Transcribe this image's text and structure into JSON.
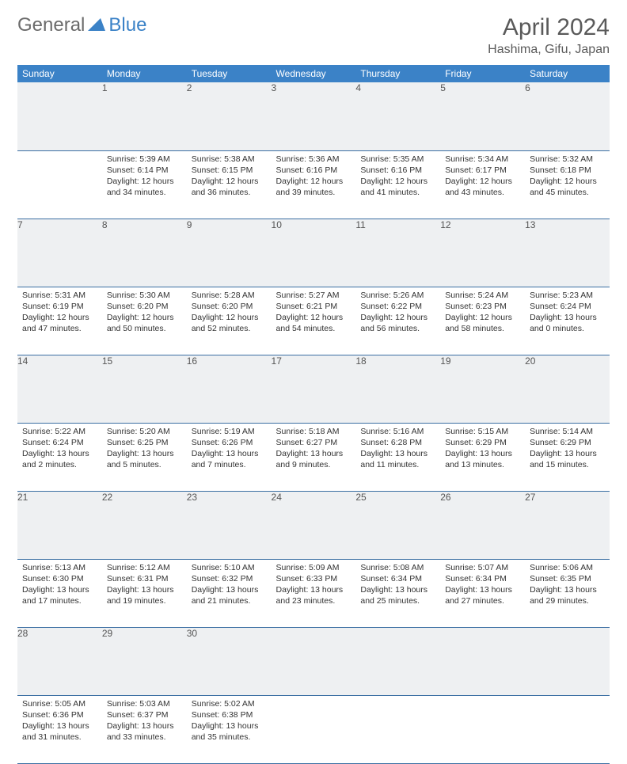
{
  "brand": {
    "part1": "General",
    "part2": "Blue"
  },
  "title": "April 2024",
  "location": "Hashima, Gifu, Japan",
  "colors": {
    "accent": "#3b82c7",
    "headerText": "#ffffff",
    "dayBg": "#eef0f2",
    "rule": "#3b6fa3",
    "bodyText": "#333333"
  },
  "dayNames": [
    "Sunday",
    "Monday",
    "Tuesday",
    "Wednesday",
    "Thursday",
    "Friday",
    "Saturday"
  ],
  "weeks": [
    [
      null,
      {
        "n": "1",
        "sr": "5:39 AM",
        "ss": "6:14 PM",
        "dl": "12 hours and 34 minutes."
      },
      {
        "n": "2",
        "sr": "5:38 AM",
        "ss": "6:15 PM",
        "dl": "12 hours and 36 minutes."
      },
      {
        "n": "3",
        "sr": "5:36 AM",
        "ss": "6:16 PM",
        "dl": "12 hours and 39 minutes."
      },
      {
        "n": "4",
        "sr": "5:35 AM",
        "ss": "6:16 PM",
        "dl": "12 hours and 41 minutes."
      },
      {
        "n": "5",
        "sr": "5:34 AM",
        "ss": "6:17 PM",
        "dl": "12 hours and 43 minutes."
      },
      {
        "n": "6",
        "sr": "5:32 AM",
        "ss": "6:18 PM",
        "dl": "12 hours and 45 minutes."
      }
    ],
    [
      {
        "n": "7",
        "sr": "5:31 AM",
        "ss": "6:19 PM",
        "dl": "12 hours and 47 minutes."
      },
      {
        "n": "8",
        "sr": "5:30 AM",
        "ss": "6:20 PM",
        "dl": "12 hours and 50 minutes."
      },
      {
        "n": "9",
        "sr": "5:28 AM",
        "ss": "6:20 PM",
        "dl": "12 hours and 52 minutes."
      },
      {
        "n": "10",
        "sr": "5:27 AM",
        "ss": "6:21 PM",
        "dl": "12 hours and 54 minutes."
      },
      {
        "n": "11",
        "sr": "5:26 AM",
        "ss": "6:22 PM",
        "dl": "12 hours and 56 minutes."
      },
      {
        "n": "12",
        "sr": "5:24 AM",
        "ss": "6:23 PM",
        "dl": "12 hours and 58 minutes."
      },
      {
        "n": "13",
        "sr": "5:23 AM",
        "ss": "6:24 PM",
        "dl": "13 hours and 0 minutes."
      }
    ],
    [
      {
        "n": "14",
        "sr": "5:22 AM",
        "ss": "6:24 PM",
        "dl": "13 hours and 2 minutes."
      },
      {
        "n": "15",
        "sr": "5:20 AM",
        "ss": "6:25 PM",
        "dl": "13 hours and 5 minutes."
      },
      {
        "n": "16",
        "sr": "5:19 AM",
        "ss": "6:26 PM",
        "dl": "13 hours and 7 minutes."
      },
      {
        "n": "17",
        "sr": "5:18 AM",
        "ss": "6:27 PM",
        "dl": "13 hours and 9 minutes."
      },
      {
        "n": "18",
        "sr": "5:16 AM",
        "ss": "6:28 PM",
        "dl": "13 hours and 11 minutes."
      },
      {
        "n": "19",
        "sr": "5:15 AM",
        "ss": "6:29 PM",
        "dl": "13 hours and 13 minutes."
      },
      {
        "n": "20",
        "sr": "5:14 AM",
        "ss": "6:29 PM",
        "dl": "13 hours and 15 minutes."
      }
    ],
    [
      {
        "n": "21",
        "sr": "5:13 AM",
        "ss": "6:30 PM",
        "dl": "13 hours and 17 minutes."
      },
      {
        "n": "22",
        "sr": "5:12 AM",
        "ss": "6:31 PM",
        "dl": "13 hours and 19 minutes."
      },
      {
        "n": "23",
        "sr": "5:10 AM",
        "ss": "6:32 PM",
        "dl": "13 hours and 21 minutes."
      },
      {
        "n": "24",
        "sr": "5:09 AM",
        "ss": "6:33 PM",
        "dl": "13 hours and 23 minutes."
      },
      {
        "n": "25",
        "sr": "5:08 AM",
        "ss": "6:34 PM",
        "dl": "13 hours and 25 minutes."
      },
      {
        "n": "26",
        "sr": "5:07 AM",
        "ss": "6:34 PM",
        "dl": "13 hours and 27 minutes."
      },
      {
        "n": "27",
        "sr": "5:06 AM",
        "ss": "6:35 PM",
        "dl": "13 hours and 29 minutes."
      }
    ],
    [
      {
        "n": "28",
        "sr": "5:05 AM",
        "ss": "6:36 PM",
        "dl": "13 hours and 31 minutes."
      },
      {
        "n": "29",
        "sr": "5:03 AM",
        "ss": "6:37 PM",
        "dl": "13 hours and 33 minutes."
      },
      {
        "n": "30",
        "sr": "5:02 AM",
        "ss": "6:38 PM",
        "dl": "13 hours and 35 minutes."
      },
      null,
      null,
      null,
      null
    ]
  ],
  "labels": {
    "sunrise": "Sunrise:",
    "sunset": "Sunset:",
    "daylight": "Daylight:"
  }
}
